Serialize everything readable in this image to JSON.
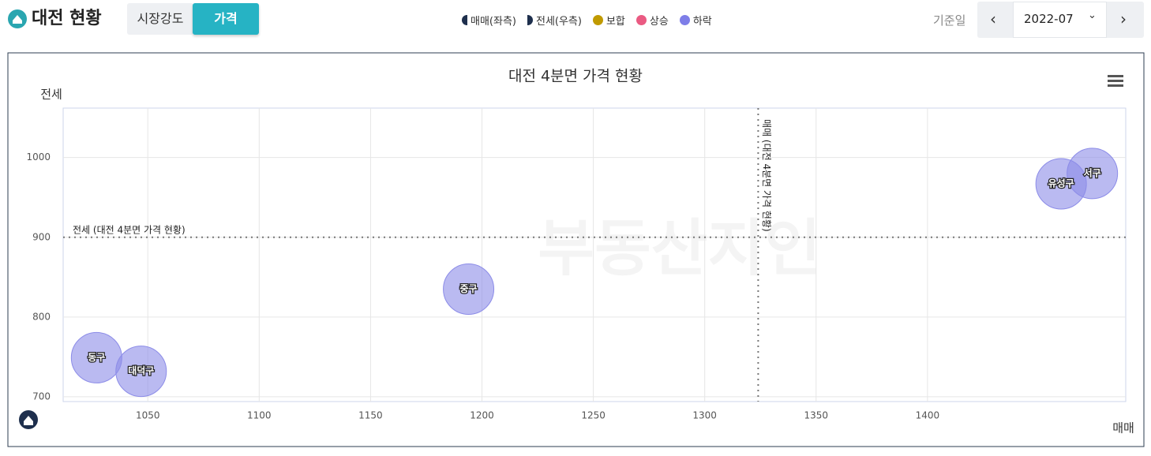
{
  "header": {
    "title": "대전 현황",
    "tabs": [
      "시장강도",
      "가격"
    ],
    "legend": [
      {
        "label": "매매(좌측)",
        "color": "#1e2f4d"
      },
      {
        "label": "전세(우측)",
        "color": "#1e2f4d"
      },
      {
        "label": "보합",
        "color": "#c09a00"
      },
      {
        "label": "상승",
        "color": "#ea5a82"
      },
      {
        "label": "하락",
        "color": "#7e7ee8"
      }
    ],
    "date_label": "기준일",
    "date": "2022-07"
  },
  "chart_data": {
    "type": "scatter",
    "title": "대전 4분면 가격 현황",
    "y_label": "전세",
    "x_label": "매매",
    "watermark": "부동산지인",
    "xlim": [
      1012,
      1489
    ],
    "xticks": [
      1050,
      1100,
      1150,
      1200,
      1250,
      1300,
      1350,
      1400
    ],
    "ylim": [
      694,
      1062
    ],
    "yticks": [
      700,
      800,
      900,
      1000
    ],
    "grid": true,
    "series": [
      {
        "name": "하락",
        "color": "#8c8ce8",
        "x": [
          1027,
          1047,
          1194,
          1460,
          1474
        ],
        "values": [
          749,
          732,
          835,
          967,
          980
        ],
        "point_labels": [
          "동구",
          "대덕구",
          "중구",
          "유성구",
          "서구"
        ]
      }
    ],
    "reference_lines": [
      {
        "axis": "x",
        "value": 1324,
        "label": "매매 (대전 4분면 가격 현황)"
      },
      {
        "axis": "y",
        "value": 900,
        "label": "전세 (대전 4분면 가격 현황)"
      }
    ]
  }
}
